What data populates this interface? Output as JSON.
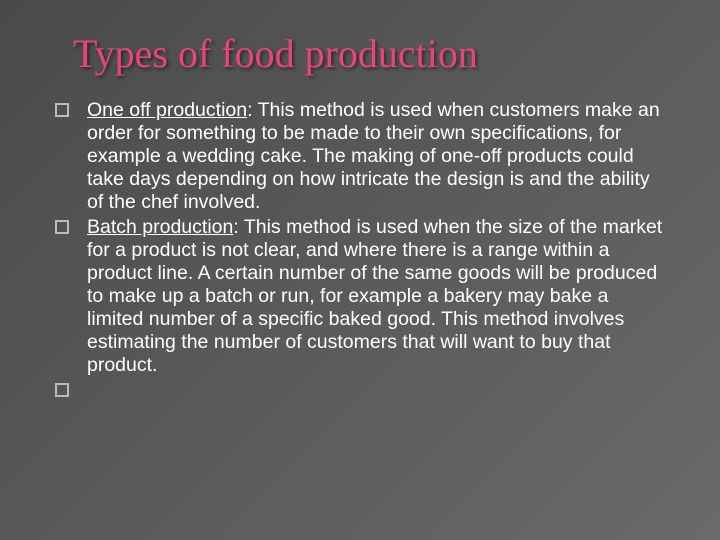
{
  "slide": {
    "title": "Types of food production",
    "title_color": "#e8447a",
    "background_gradient": [
      "#4a4a4a",
      "#5a5a5a",
      "#6a6a6a"
    ],
    "body_color": "#ffffff",
    "title_fontsize": 40,
    "body_fontsize": 19.5,
    "bullet_border_color": "#bbbbbb",
    "bullets": [
      {
        "term": "One off production",
        "text": ": This method is used when customers make an order for something to be made to their own specifications, for example a wedding cake. The making of one-off products could take days depending on how intricate the design is and the ability of the chef involved."
      },
      {
        "term": "Batch production",
        "text": ": This method is used when the size of the market for a product is not clear, and where there is a range within a product line. A certain number of the same goods will be produced to make up a batch or run, for example a bakery may bake a limited number of a specific baked good. This method involves estimating the number of customers that will want to buy that product."
      },
      {
        "term": "",
        "text": ""
      }
    ]
  }
}
